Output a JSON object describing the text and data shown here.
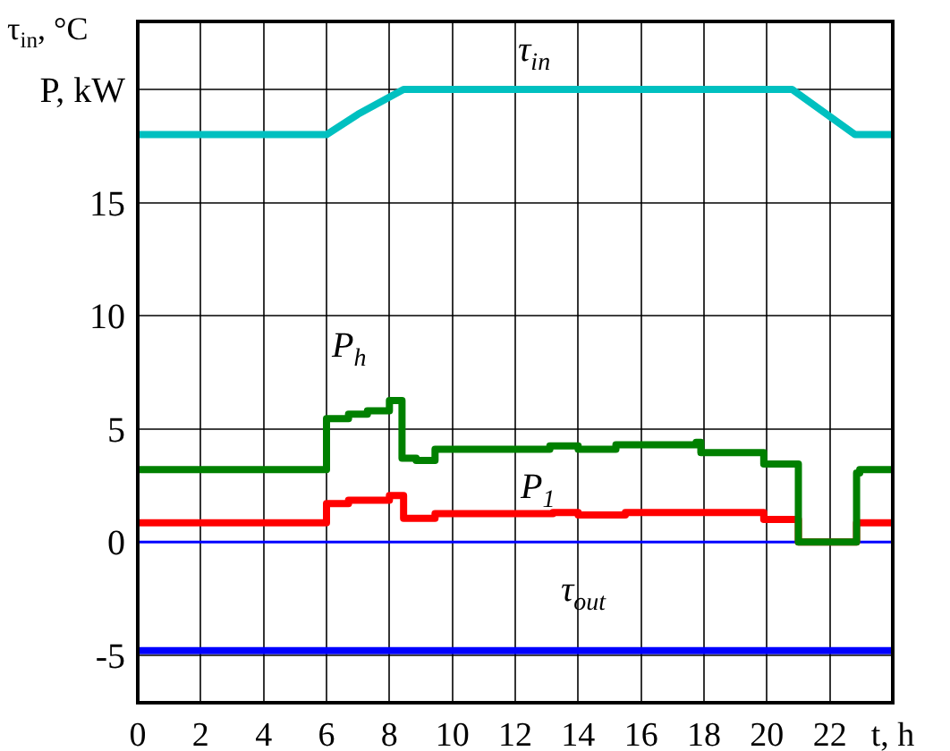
{
  "chart_data": {
    "type": "line",
    "ylabel": "τ$_{in}$, °C",
    "xlim": [
      0,
      24
    ],
    "xticks": [
      0,
      2,
      4,
      6,
      8,
      10,
      12,
      14,
      16,
      18,
      20,
      22,
      {
        "value": 24,
        "label": "t, h"
      }
    ],
    "ylim": [
      -7.1,
      23
    ],
    "yticks": [
      -5,
      0,
      5,
      10,
      15,
      {
        "value": 20,
        "label": "P, kW"
      }
    ],
    "grid": true,
    "legend": false,
    "marker": "none",
    "line_style": "solid",
    "ref_lines": [
      {
        "axis": "y",
        "value": 0,
        "color": "#0000ff"
      }
    ],
    "series": [
      {
        "name": "τ$_{in}$",
        "color": "#00c0c0",
        "x": [
          0,
          6,
          7,
          8.45,
          20.8,
          21.8,
          22.8,
          24
        ],
        "values": [
          18,
          18,
          18.9,
          20,
          20,
          19,
          18,
          18
        ]
      },
      {
        "name": "P$_{h}$",
        "type": "step",
        "color": "#008000",
        "x": [
          0,
          6,
          6.7,
          7.3,
          8,
          8.4,
          8.85,
          9.45,
          13.1,
          14,
          15.2,
          17.75,
          17.9,
          19.9,
          21,
          22.85,
          22.95,
          24
        ],
        "values": [
          3.2,
          5.45,
          5.65,
          5.8,
          6.25,
          3.7,
          3.6,
          4.1,
          4.25,
          4.1,
          4.3,
          4.4,
          3.95,
          3.45,
          0,
          3.05,
          3.2,
          3.2
        ]
      },
      {
        "name": "P$_{1}$",
        "type": "step",
        "color": "#ff0000",
        "x": [
          0,
          6,
          6.7,
          8,
          8.45,
          9.45,
          13.2,
          14,
          15.5,
          19.9,
          21,
          22.85,
          24
        ],
        "values": [
          0.85,
          1.7,
          1.85,
          2.05,
          1.05,
          1.25,
          1.3,
          1.2,
          1.3,
          1.0,
          0,
          0.85,
          0.85
        ]
      },
      {
        "name": "τ$_{out}$",
        "color": "#0000ff",
        "x": [
          0,
          24
        ],
        "values": [
          -4.8,
          -4.8
        ]
      }
    ]
  }
}
